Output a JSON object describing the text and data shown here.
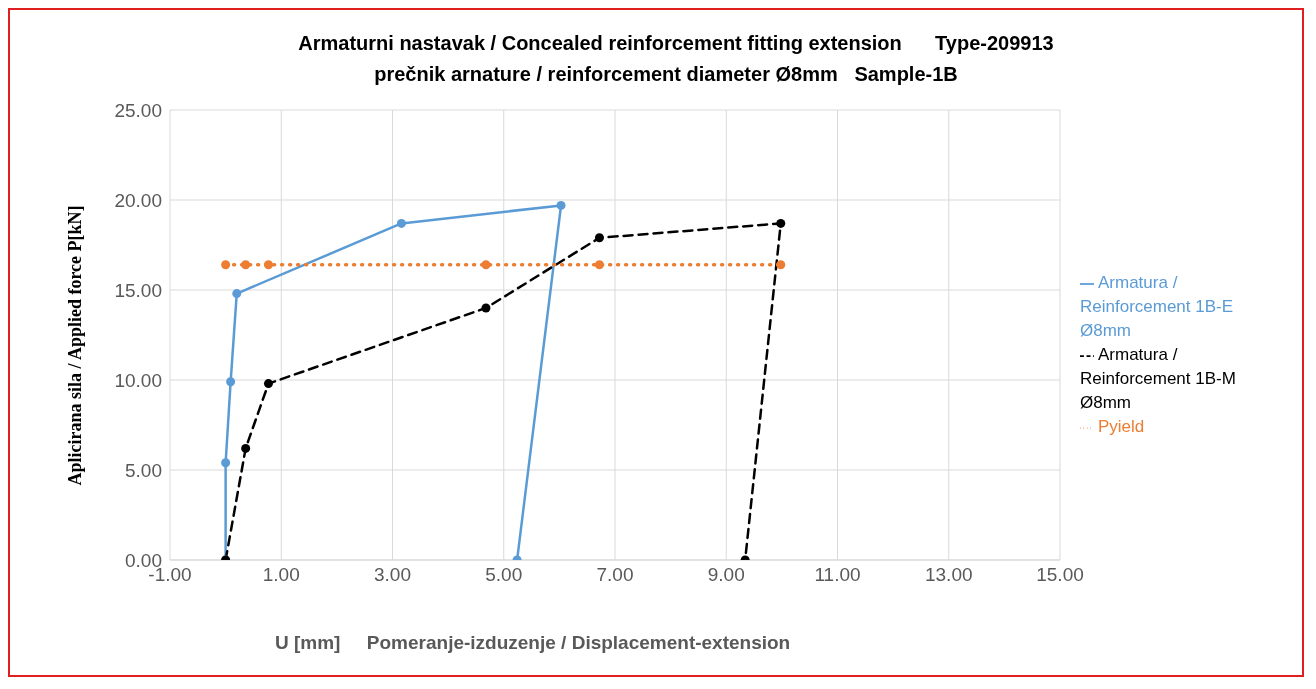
{
  "chart_data": {
    "type": "line",
    "title": "Armaturni nastavak / Concealed reinforcement fitting extension      Type-209913",
    "subtitle": "prečnik arnature / reinforcement diameter Ø8mm   Sample-1B",
    "xlabel": "U [mm]     Pomeranje-izduzenje / Displacement-extension",
    "ylabel": "Aplicirana sila / Applied force P[kN]",
    "series": [
      {
        "name": "Armatura / Reinforcement 1B-E   Ø8mm",
        "color": "#5b9bd5",
        "line_style": "solid",
        "x": [
          0,
          0,
          0.09,
          0.2,
          3.16,
          6.03,
          5.24
        ],
        "values": [
          0,
          5.4,
          9.9,
          14.8,
          18.7,
          19.7,
          0
        ]
      },
      {
        "name": "Armatura / Reinforcement 1B-M   Ø8mm",
        "color": "#000000",
        "line_style": "dashed",
        "x": [
          0,
          0.36,
          0.77,
          4.68,
          6.72,
          9.98,
          9.34
        ],
        "values": [
          0,
          6.2,
          9.8,
          14,
          17.9,
          18.7,
          0
        ]
      },
      {
        "name": "Pyield",
        "color": "#ed7d31",
        "line_style": "dotted",
        "x": [
          0,
          0.36,
          0.77,
          4.68,
          6.72,
          9.98
        ],
        "values": [
          16.4,
          16.4,
          16.4,
          16.4,
          16.4,
          16.4
        ]
      }
    ],
    "marker": "circle",
    "grid": true,
    "legend": "right",
    "xlim": [
      -1,
      15
    ],
    "xticks": [
      {
        "value": -1,
        "label": "-1.00"
      },
      {
        "value": 1,
        "label": "1.00"
      },
      {
        "value": 3,
        "label": "3.00"
      },
      {
        "value": 5,
        "label": "5.00"
      },
      {
        "value": 7,
        "label": "7.00"
      },
      {
        "value": 9,
        "label": "9.00"
      },
      {
        "value": 11,
        "label": "11.00"
      },
      {
        "value": 13,
        "label": "13.00"
      },
      {
        "value": 15,
        "label": "15.00"
      }
    ],
    "ylim": [
      0,
      25
    ],
    "yticks": [
      {
        "value": 0,
        "label": "0.00"
      },
      {
        "value": 5,
        "label": "5.00"
      },
      {
        "value": 10,
        "label": "10.00"
      },
      {
        "value": 15,
        "label": "15.00"
      },
      {
        "value": 20,
        "label": "20.00"
      },
      {
        "value": 25,
        "label": "25.00"
      }
    ]
  }
}
